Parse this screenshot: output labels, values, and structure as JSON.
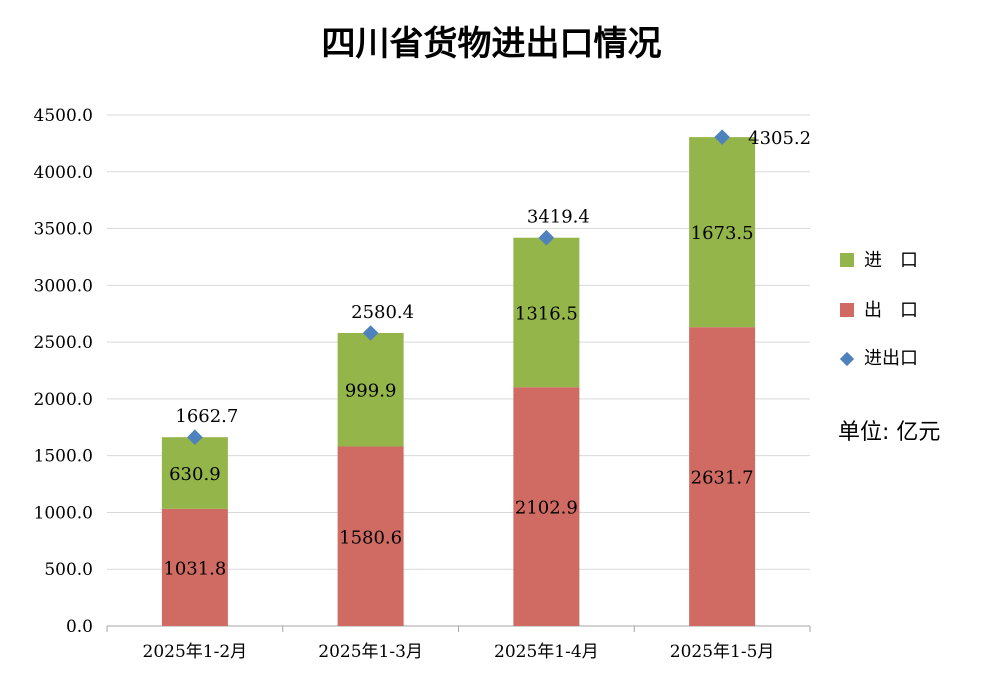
{
  "chart_data": {
    "type": "bar",
    "title": "四川省货物进出口情况",
    "categories": [
      "2025年1-2月",
      "2025年1-3月",
      "2025年1-4月",
      "2025年1-5月"
    ],
    "series": [
      {
        "name": "出　口",
        "type": "stacked-bar",
        "color": "#d06b63",
        "values": [
          1031.8,
          1580.6,
          2102.9,
          2631.7
        ],
        "labels": [
          "1031.8",
          "1580.6",
          "2102.9",
          "2631.7"
        ]
      },
      {
        "name": "进　口",
        "type": "stacked-bar",
        "color": "#93b54a",
        "values": [
          630.9,
          999.9,
          1316.5,
          1673.5
        ],
        "labels": [
          "630.9",
          "999.9",
          "1316.5",
          "1673.5"
        ]
      },
      {
        "name": "进出口",
        "type": "marker",
        "color": "#4f81bd",
        "values": [
          1662.7,
          2580.4,
          3419.4,
          4305.2
        ],
        "labels": [
          "1662.7",
          "2580.4",
          "3419.4",
          "4305.2"
        ]
      }
    ],
    "yticks": [
      "0.0",
      "500.0",
      "1000.0",
      "1500.0",
      "2000.0",
      "2500.0",
      "3000.0",
      "3500.0",
      "4000.0",
      "4500.0"
    ],
    "ylim": [
      0,
      4500
    ],
    "grid": true,
    "legend_position": "right",
    "unit_note": "单位: 亿元"
  }
}
